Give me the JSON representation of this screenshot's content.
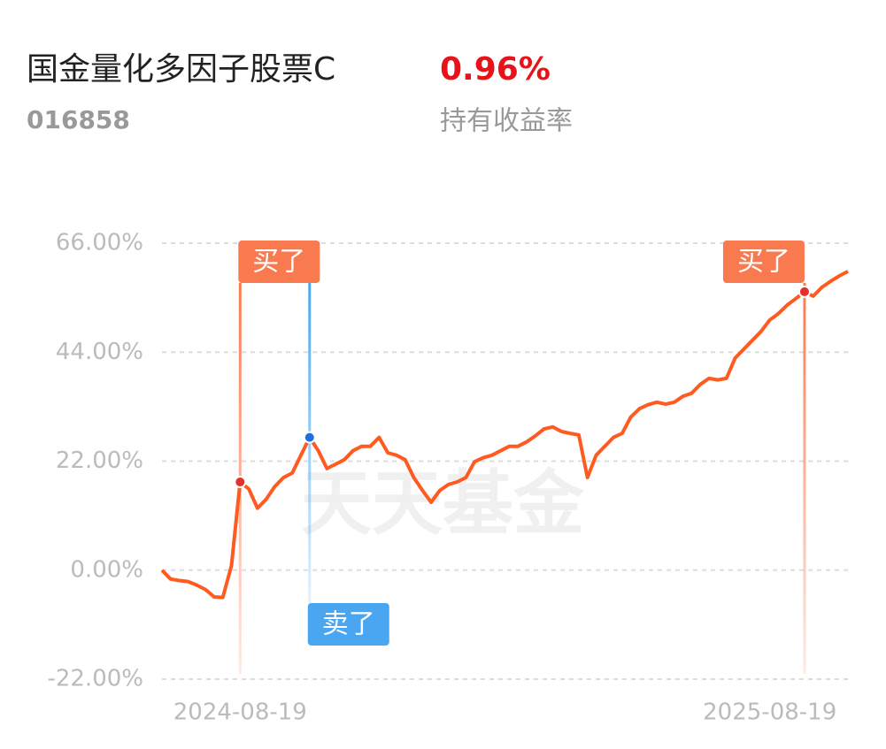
{
  "header": {
    "title": "国金量化多因子股票C",
    "code": "016858",
    "return_value": "0.96%",
    "return_label": "持有收益率"
  },
  "chart_data": {
    "type": "line",
    "watermark": "天天基金",
    "categories": [
      null,
      null,
      null,
      null,
      null,
      null,
      null,
      null,
      null,
      "2024-08-19",
      null,
      null,
      null,
      null,
      null,
      null,
      null,
      null,
      null,
      null,
      null,
      null,
      null,
      null,
      null,
      null,
      null,
      null,
      null,
      null,
      null,
      null,
      null,
      null,
      null,
      null,
      null,
      null,
      null,
      null,
      null,
      null,
      null,
      null,
      null,
      null,
      null,
      null,
      null,
      null,
      null,
      null,
      null,
      null,
      null,
      null,
      null,
      null,
      null,
      null,
      null,
      null,
      null,
      null,
      null,
      null,
      null,
      null,
      null,
      null,
      "2025-08-19",
      null,
      null,
      null,
      null,
      null,
      null,
      null,
      null,
      null
    ],
    "series": [
      {
        "color": "#ff5a1f",
        "values": [
          0,
          -1.8,
          -2.1,
          -2.3,
          -3,
          -3.9,
          -5.4,
          -5.5,
          0.9,
          17.8,
          16.4,
          12.5,
          14.3,
          16.9,
          18.7,
          19.6,
          23.2,
          26.8,
          24.1,
          20.5,
          21.4,
          22.3,
          24.1,
          25,
          25,
          26.8,
          23.7,
          23.2,
          22.3,
          18.7,
          16.1,
          13.7,
          16.1,
          17.3,
          17.8,
          18.7,
          21.9,
          22.7,
          23.2,
          24.1,
          25,
          25,
          25.9,
          27.1,
          28.5,
          28.9,
          28,
          27.6,
          27.3,
          18.7,
          23.2,
          25,
          26.8,
          27.6,
          30.9,
          32.6,
          33.4,
          33.9,
          33.5,
          33.9,
          35.1,
          35.7,
          37.5,
          38.7,
          38.4,
          38.7,
          42.8,
          44.6,
          46.4,
          48.2,
          50.5,
          51.8,
          53.5,
          54.8,
          56.2,
          55.3,
          57.1,
          58.3,
          59.4,
          60.3
        ]
      }
    ],
    "ylim": [
      -22,
      66
    ],
    "yticks": [
      {
        "value": -22,
        "label": "-22.00%"
      },
      {
        "value": 0,
        "label": "0.00%"
      },
      {
        "value": 22,
        "label": "22.00%"
      },
      {
        "value": 44,
        "label": "44.00%"
      },
      {
        "value": 66,
        "label": "66.00%"
      }
    ],
    "grid": true,
    "annotations": [
      {
        "text": "买了",
        "point": 9,
        "color": "#f97a4e",
        "position": "top"
      },
      {
        "text": "卖了",
        "point": 17,
        "color": "#4aa6f0",
        "position": "bottom"
      },
      {
        "text": "买了",
        "point": 74,
        "color": "#f97a4e",
        "position": "top"
      }
    ]
  }
}
